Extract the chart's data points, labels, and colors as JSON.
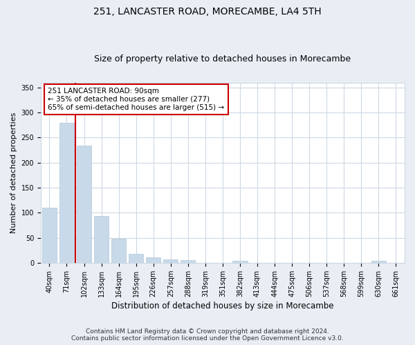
{
  "title": "251, LANCASTER ROAD, MORECAMBE, LA4 5TH",
  "subtitle": "Size of property relative to detached houses in Morecambe",
  "xlabel": "Distribution of detached houses by size in Morecambe",
  "ylabel": "Number of detached properties",
  "bar_color": "#c8daea",
  "bar_edge_color": "#aec6d8",
  "vline_color": "#cc0000",
  "vline_x": 1.5,
  "categories": [
    "40sqm",
    "71sqm",
    "102sqm",
    "133sqm",
    "164sqm",
    "195sqm",
    "226sqm",
    "257sqm",
    "288sqm",
    "319sqm",
    "351sqm",
    "382sqm",
    "413sqm",
    "444sqm",
    "475sqm",
    "506sqm",
    "537sqm",
    "568sqm",
    "599sqm",
    "630sqm",
    "661sqm"
  ],
  "values": [
    110,
    280,
    234,
    94,
    48,
    18,
    11,
    6,
    5,
    0,
    0,
    4,
    0,
    0,
    0,
    0,
    0,
    0,
    0,
    4,
    0
  ],
  "ylim": [
    0,
    360
  ],
  "yticks": [
    0,
    50,
    100,
    150,
    200,
    250,
    300,
    350
  ],
  "annotation_text": "251 LANCASTER ROAD: 90sqm\n← 35% of detached houses are smaller (277)\n65% of semi-detached houses are larger (515) →",
  "footer": "Contains HM Land Registry data © Crown copyright and database right 2024.\nContains public sector information licensed under the Open Government Licence v3.0.",
  "background_color": "#e8eef4",
  "plot_background_color": "#ffffff",
  "grid_color": "#cdd8e4",
  "title_fontsize": 10,
  "subtitle_fontsize": 9,
  "ylabel_fontsize": 8,
  "xlabel_fontsize": 8.5,
  "tick_fontsize": 7,
  "annotation_fontsize": 7.5,
  "footer_fontsize": 6.5
}
